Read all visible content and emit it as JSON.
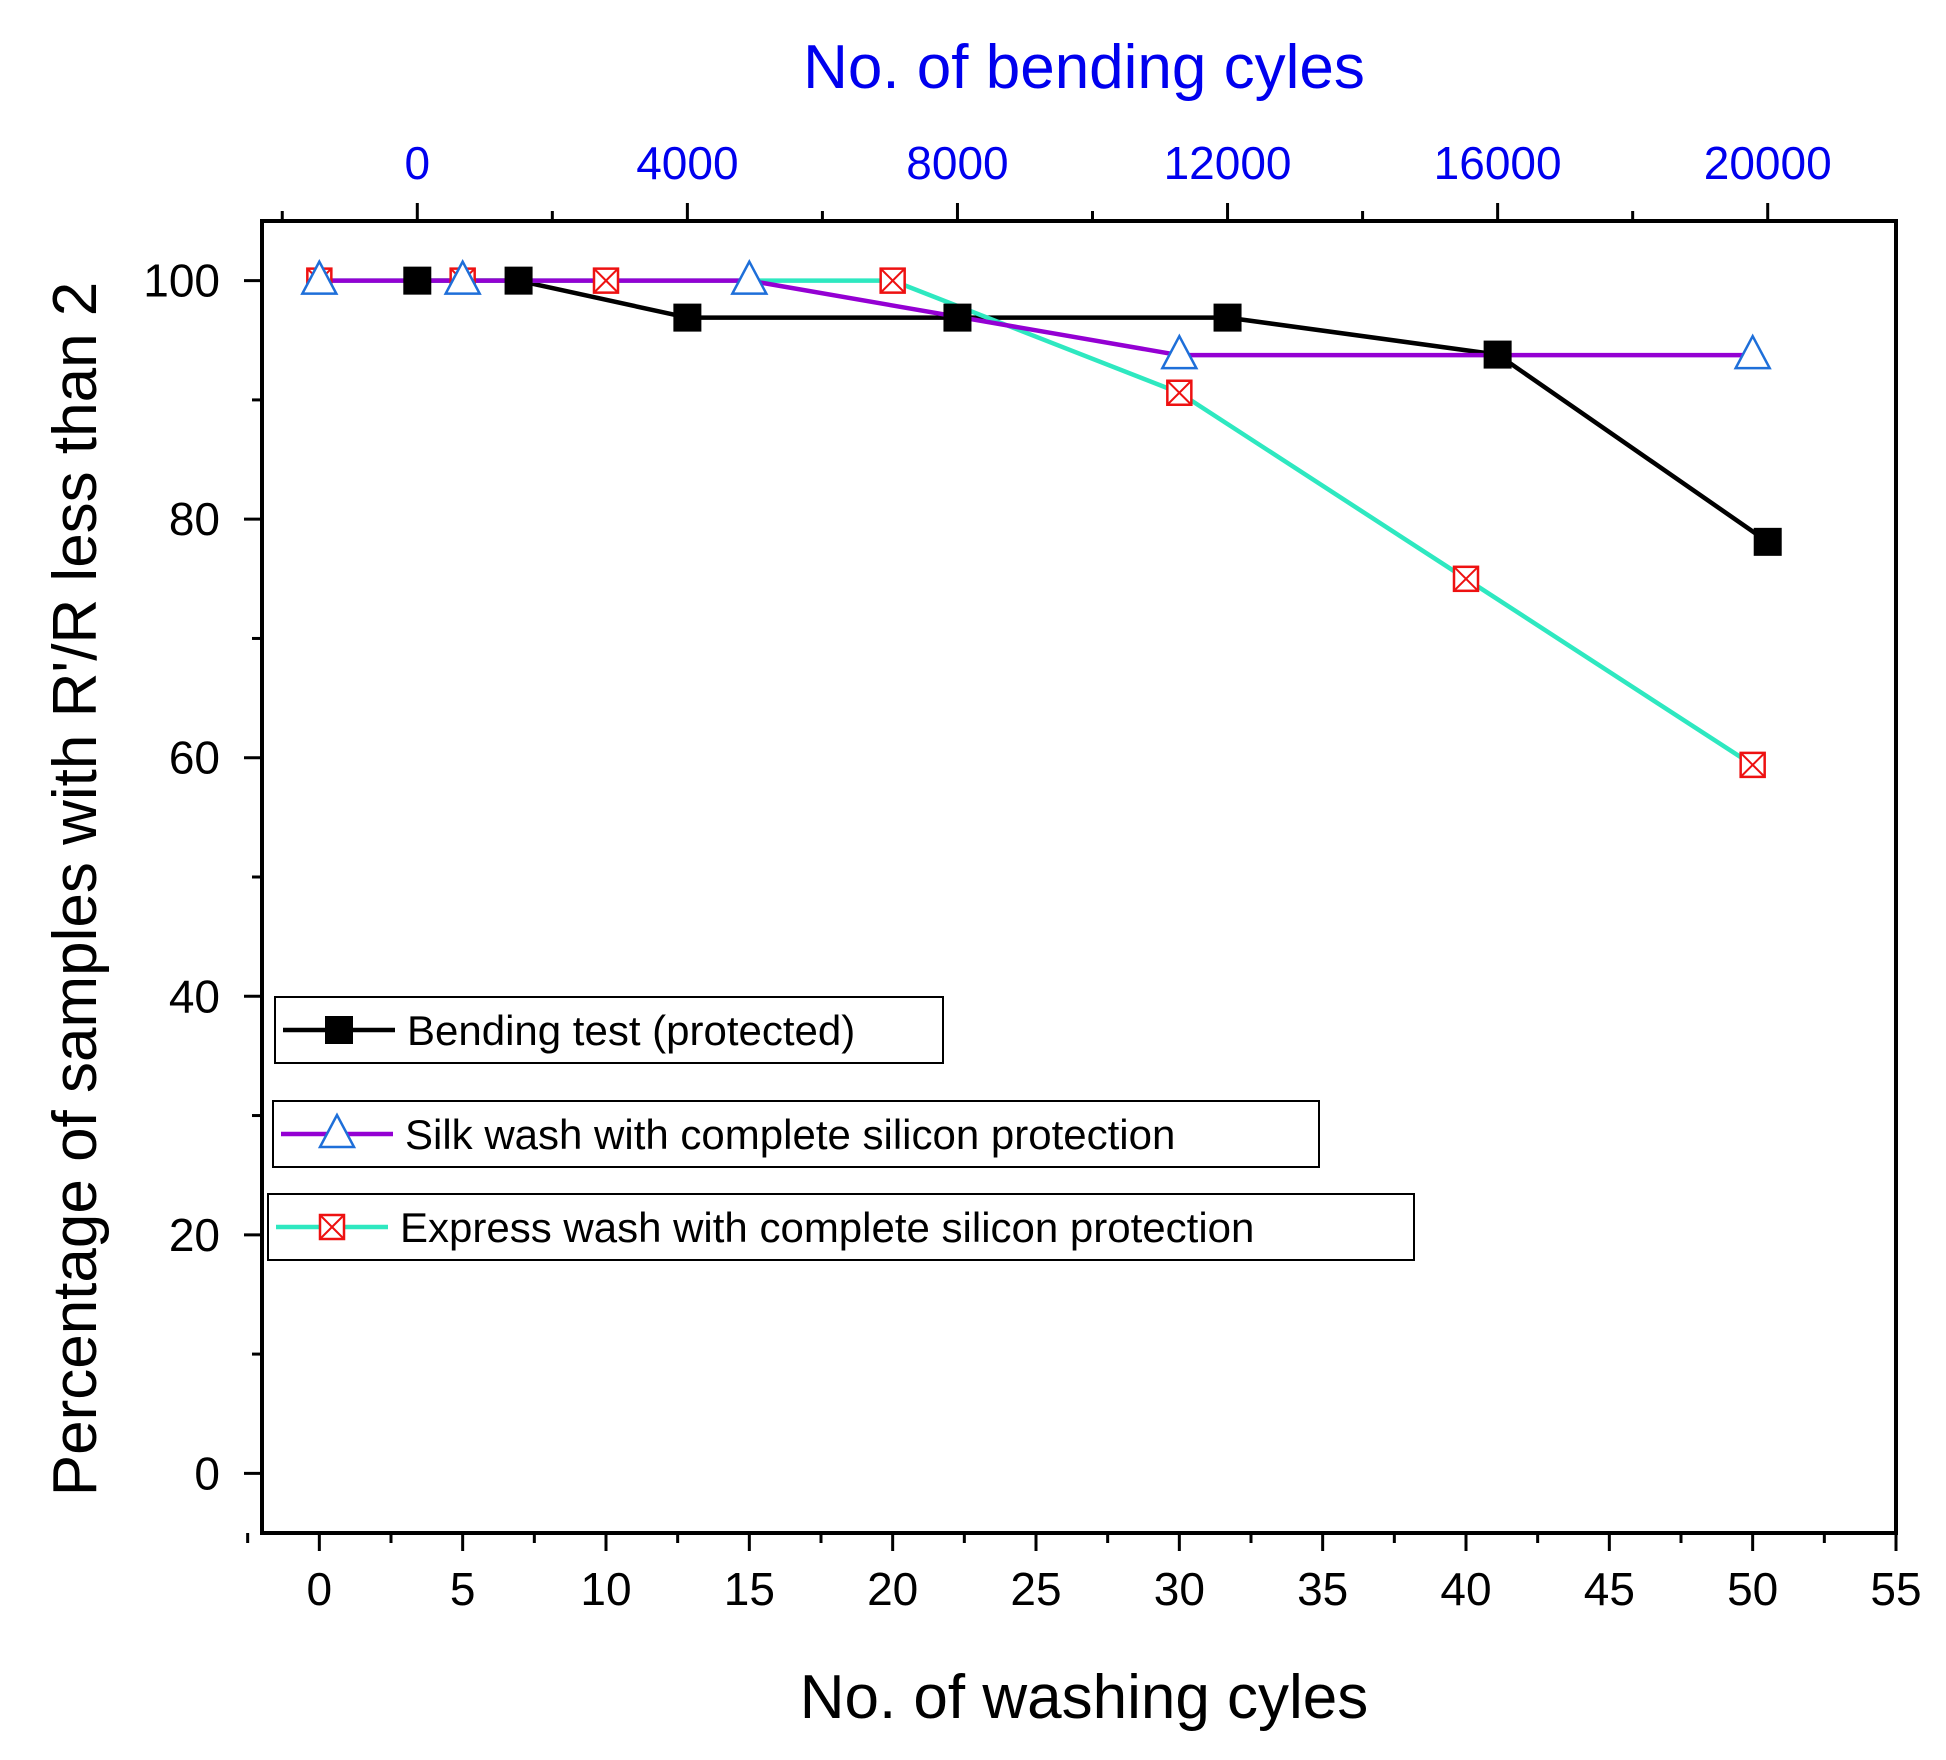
{
  "chart_data": {
    "type": "line",
    "xlabel": "No. of washing cyles",
    "x2label": "No. of bending cyles",
    "ylabel": "Percentage of samples with R'/R less than 2",
    "xlim": [
      -2,
      55
    ],
    "x2lim": [
      -2300,
      21900
    ],
    "ylim": [
      -5,
      105
    ],
    "xticks": [
      0,
      5,
      10,
      15,
      20,
      25,
      30,
      35,
      40,
      45,
      50,
      55
    ],
    "x2ticks": [
      0,
      4000,
      8000,
      12000,
      16000,
      20000
    ],
    "yticks": [
      0,
      20,
      40,
      60,
      80,
      100
    ],
    "legend_position": "lower-left",
    "series": [
      {
        "name": "Bending test (protected)",
        "axis": "top",
        "line_color": "#000000",
        "marker": "filled-square",
        "marker_color": "#000000",
        "x": [
          0,
          1500,
          4000,
          8000,
          12000,
          16000,
          20000
        ],
        "y": [
          100,
          100,
          96.9,
          96.9,
          96.9,
          93.8,
          78.1
        ]
      },
      {
        "name": "Silk wash with complete silicon protection",
        "axis": "bottom",
        "line_color": "#9400d3",
        "marker": "open-triangle",
        "marker_color": "#1e6fd9",
        "x": [
          0,
          5,
          15,
          30,
          50
        ],
        "y": [
          100,
          100,
          100,
          93.75,
          93.75
        ]
      },
      {
        "name": "Express wash with complete silicon protection",
        "axis": "bottom",
        "line_color": "#2ee8c0",
        "marker": "crossed-square",
        "marker_color": "#ee1111",
        "x": [
          0,
          5,
          10,
          20,
          30,
          40,
          50
        ],
        "y": [
          100,
          100,
          100,
          100,
          90.6,
          75,
          59.4
        ]
      }
    ]
  }
}
